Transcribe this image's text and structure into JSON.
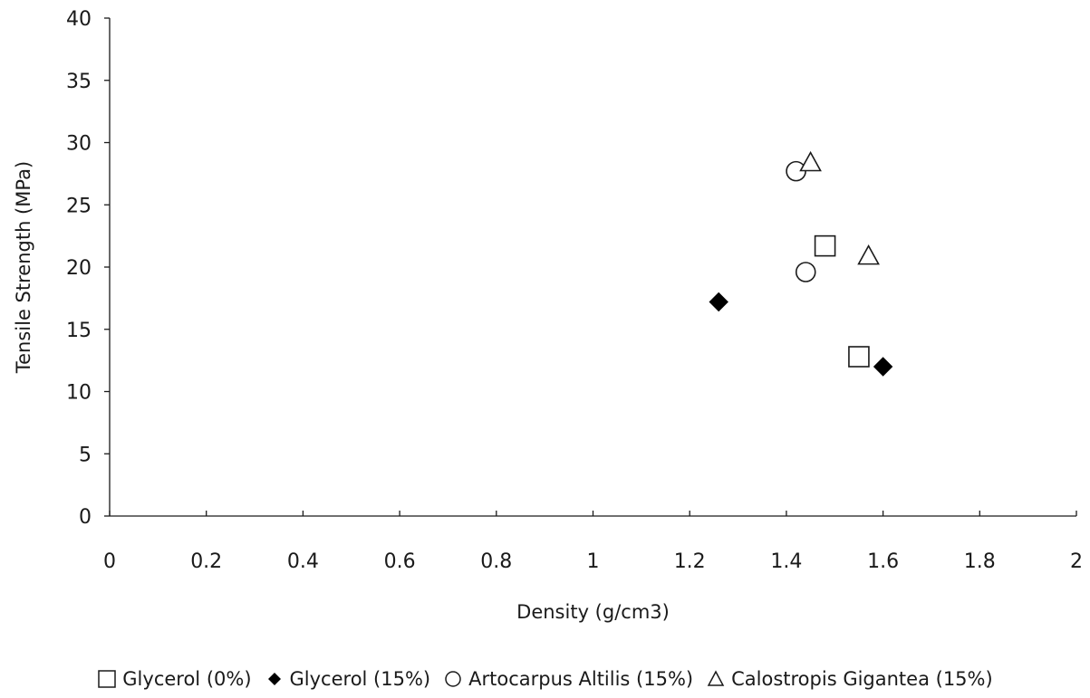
{
  "chart_data": {
    "type": "scatter",
    "title": "",
    "xlabel": "Density (g/cm3)",
    "ylabel": "Tensile Strength (MPa)",
    "xlim": [
      0,
      2
    ],
    "ylim": [
      0,
      40
    ],
    "x_ticks": [
      "0",
      "0.2",
      "0.4",
      "0.6",
      "0.8",
      "1",
      "1.2",
      "1.4",
      "1.6",
      "1.8",
      "2"
    ],
    "y_ticks": [
      "0",
      "5",
      "10",
      "15",
      "20",
      "25",
      "30",
      "35",
      "40"
    ],
    "grid": false,
    "legend_position": "bottom",
    "series": [
      {
        "name": "Glycerol (0%)",
        "marker": "square-open",
        "points": [
          {
            "x": 1.48,
            "y": 21.7
          },
          {
            "x": 1.55,
            "y": 12.8
          }
        ]
      },
      {
        "name": "Glycerol (15%)",
        "marker": "diamond-filled",
        "points": [
          {
            "x": 1.26,
            "y": 17.2
          },
          {
            "x": 1.6,
            "y": 12.0
          }
        ]
      },
      {
        "name": "Artocarpus Altilis (15%)",
        "marker": "circle-open",
        "points": [
          {
            "x": 1.42,
            "y": 27.7
          },
          {
            "x": 1.44,
            "y": 19.6
          }
        ]
      },
      {
        "name": "Calostropis Gigantea (15%)",
        "marker": "triangle-open",
        "points": [
          {
            "x": 1.45,
            "y": 28.4
          },
          {
            "x": 1.57,
            "y": 20.9
          }
        ]
      }
    ]
  }
}
